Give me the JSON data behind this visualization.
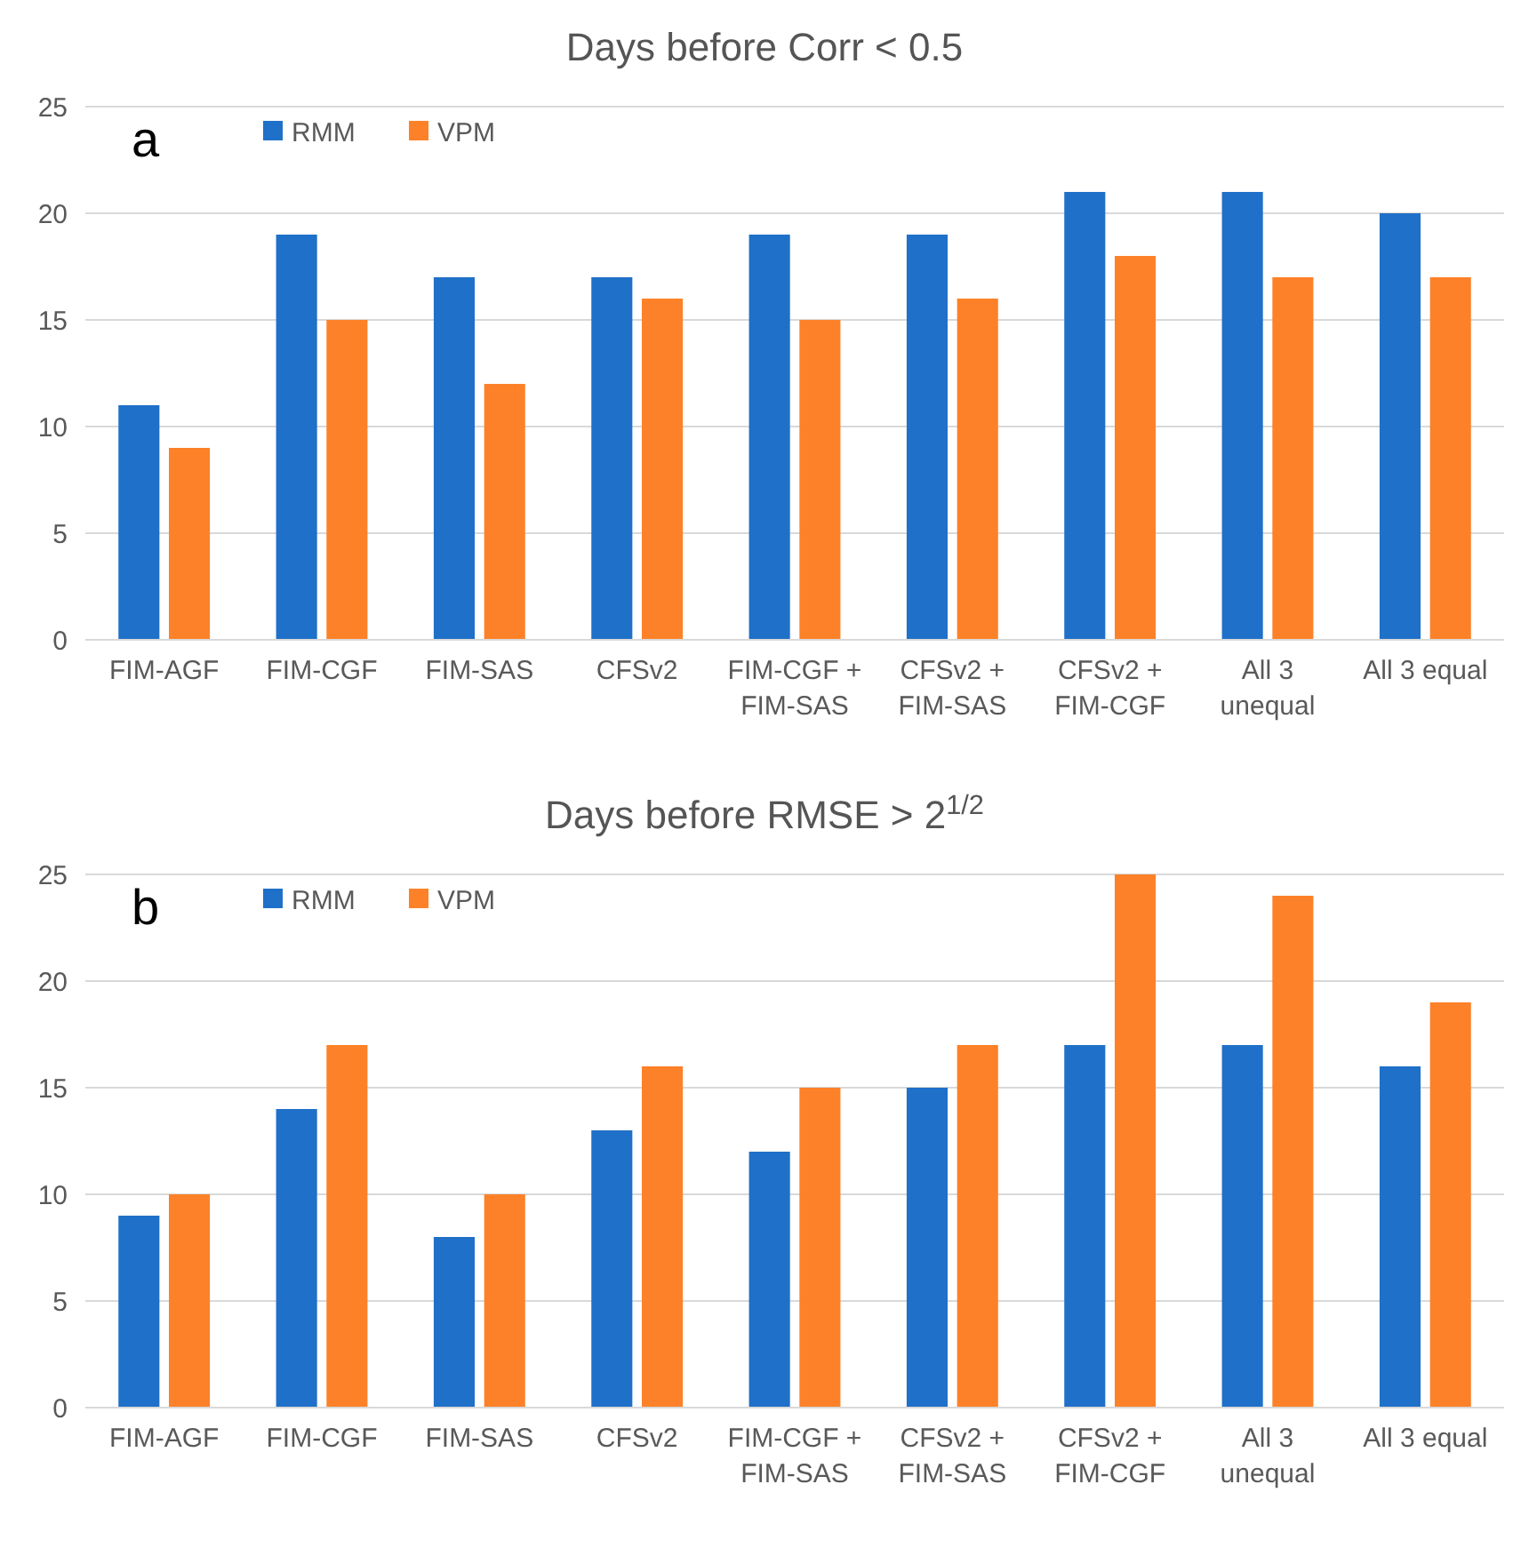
{
  "chart_data": [
    {
      "type": "bar",
      "title": "Days before Corr < 0.5",
      "annotations": [
        "a"
      ],
      "categories": [
        "FIM-AGF",
        "FIM-CGF",
        "FIM-SAS",
        "CFSv2",
        "FIM-CGF +\nFIM-SAS",
        "CFSv2 +\nFIM-SAS",
        "CFSv2 +\nFIM-CGF",
        "All 3\nunequal",
        "All 3 equal"
      ],
      "series": [
        {
          "name": "RMM",
          "color": "#1f70c8",
          "values": [
            11,
            19,
            17,
            17,
            19,
            19,
            21,
            21,
            20
          ]
        },
        {
          "name": "VPM",
          "color": "#fd8128",
          "values": [
            9,
            15,
            12,
            16,
            15,
            16,
            18,
            17,
            17
          ]
        }
      ],
      "ylim": [
        0,
        25
      ],
      "yticks": [
        0,
        5,
        10,
        15,
        20,
        25
      ],
      "grid": "y",
      "legend": "top left"
    },
    {
      "type": "bar",
      "title": "Days before RMSE > 2$^{1/2}$",
      "annotations": [
        "b"
      ],
      "categories": [
        "FIM-AGF",
        "FIM-CGF",
        "FIM-SAS",
        "CFSv2",
        "FIM-CGF +\nFIM-SAS",
        "CFSv2 +\nFIM-SAS",
        "CFSv2 +\nFIM-CGF",
        "All 3\nunequal",
        "All 3 equal"
      ],
      "series": [
        {
          "name": "RMM",
          "color": "#1f70c8",
          "values": [
            9,
            14,
            8,
            13,
            12,
            15,
            17,
            17,
            16
          ]
        },
        {
          "name": "VPM",
          "color": "#fd8128",
          "values": [
            10,
            17,
            10,
            16,
            15,
            17,
            25,
            24,
            19
          ]
        }
      ],
      "ylim": [
        0,
        25
      ],
      "yticks": [
        0,
        5,
        10,
        15,
        20,
        25
      ],
      "grid": "y",
      "legend": "top left"
    }
  ]
}
